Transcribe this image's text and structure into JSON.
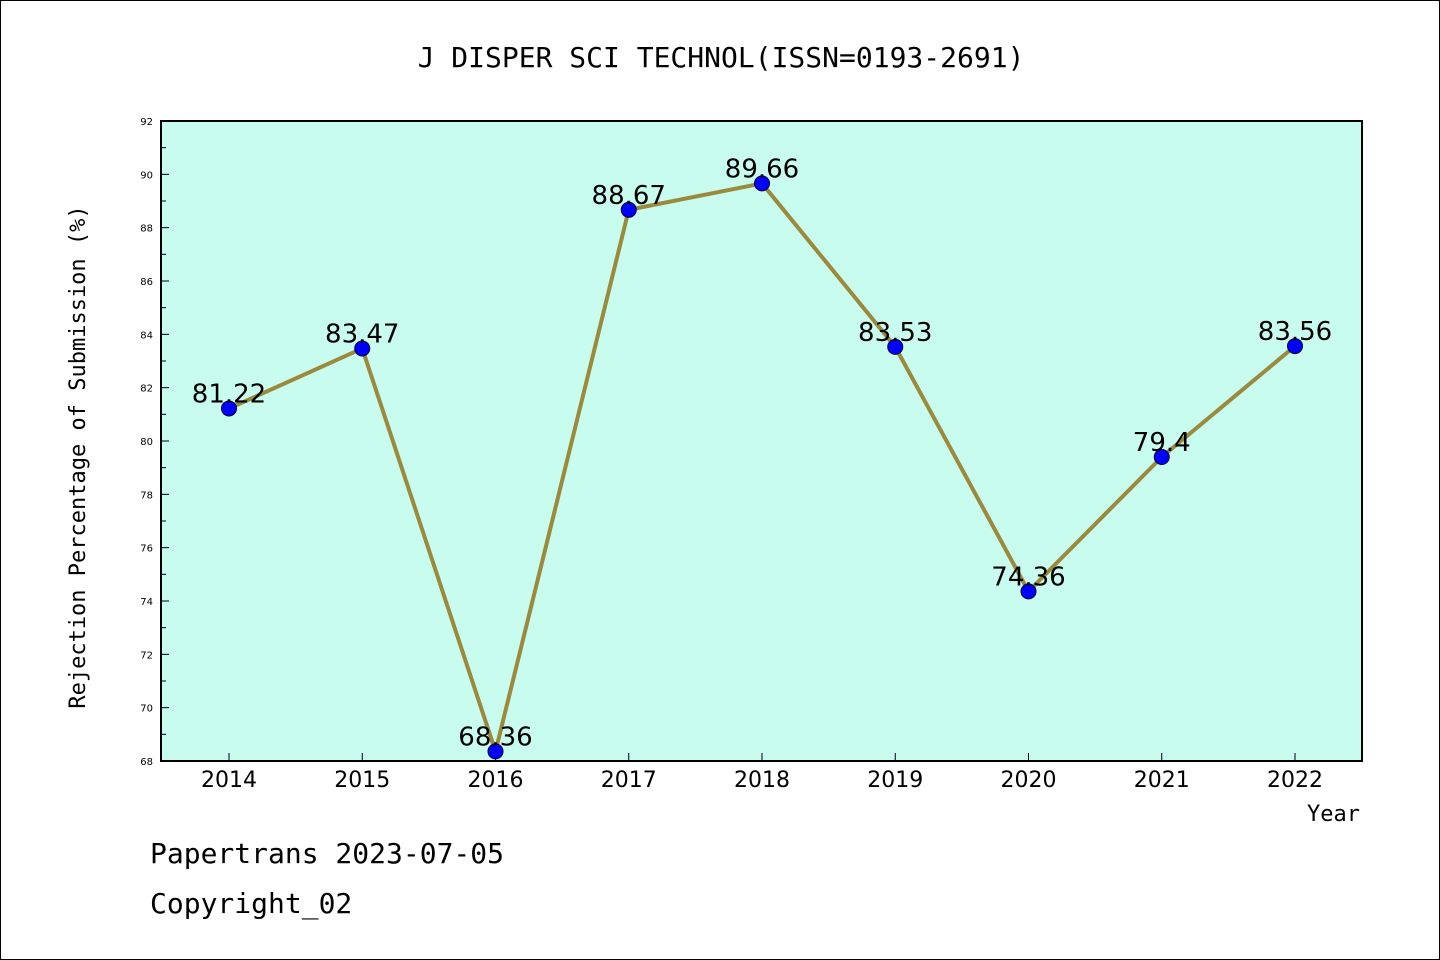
{
  "chart_data": {
    "type": "line",
    "title": "J DISPER SCI TECHNOL(ISSN=0193-2691)",
    "xlabel": "Year",
    "ylabel": "Rejection Percentage of Submission (%)",
    "categories": [
      "2014",
      "2015",
      "2016",
      "2017",
      "2018",
      "2019",
      "2020",
      "2021",
      "2022"
    ],
    "values": [
      81.22,
      83.47,
      68.36,
      88.67,
      89.66,
      83.53,
      74.36,
      79.4,
      83.56
    ],
    "data_labels": [
      "81.22",
      "83.47",
      "68.36",
      "88.67",
      "89.66",
      "83.53",
      "74.36",
      "79.4",
      "83.56"
    ],
    "ylim": [
      68,
      92
    ],
    "yticks": [
      68,
      70,
      72,
      74,
      76,
      78,
      80,
      82,
      84,
      86,
      88,
      90,
      92
    ],
    "grid": false,
    "legend": "none",
    "colors": {
      "plot_background": "#c8fcee",
      "line": "#9b8a3c",
      "marker": "#0000ff"
    }
  },
  "footer": {
    "date_line": "Papertrans 2023-07-05",
    "copyright": "Copyright_02"
  }
}
